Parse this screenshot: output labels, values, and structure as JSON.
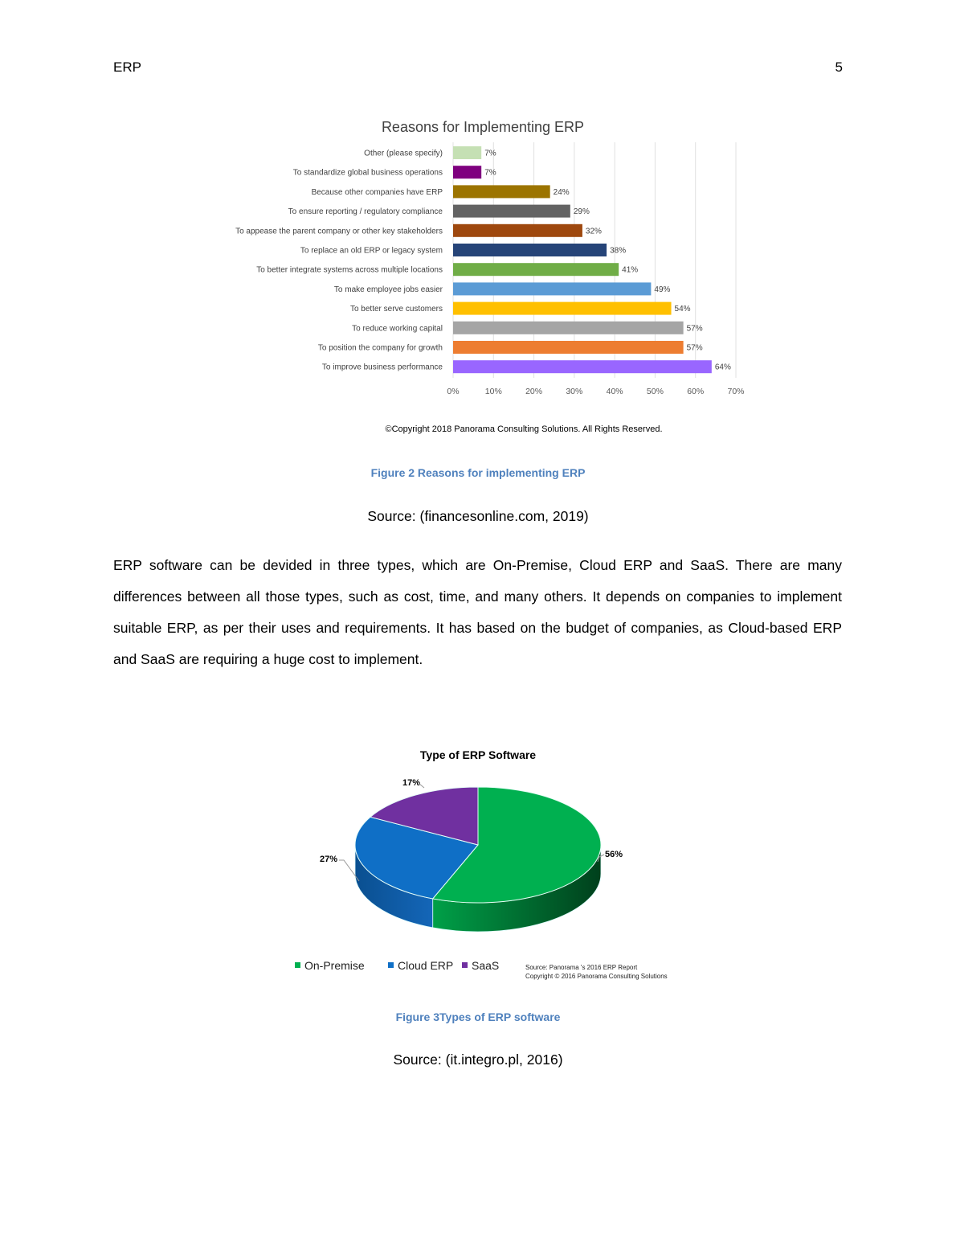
{
  "header": {
    "running_title": "ERP",
    "page_number": "5"
  },
  "figure2": {
    "caption": "Figure 2 Reasons for implementing ERP",
    "source": "Source: (financesonline.com, 2019)",
    "copyright": "©Copyright 2018 Panorama Consulting Solutions.  All Rights Reserved."
  },
  "paragraph": "ERP software can be devided in three types, which are On-Premise, Cloud ERP and SaaS. There are many differences between all those types, such as cost, time, and many others. It depends on companies to implement suitable ERP, as per their uses and requirements. It has based on the budget of companies, as Cloud-based ERP and SaaS are requiring a huge cost to implement.",
  "figure3": {
    "caption": "Figure 3Types of ERP software",
    "source": "Source: (it.integro.pl, 2016)",
    "chart_source_line1": "Source: Panorama 's 2016 ERP Report",
    "chart_source_line2": "Copyright © 2016 Panorama Consulting Solutions"
  },
  "chart_data": [
    {
      "type": "bar",
      "orientation": "horizontal",
      "title": "Reasons for Implementing ERP",
      "categories": [
        "Other (please specify)",
        "To standardize global business operations",
        "Because other companies have ERP",
        "To ensure reporting / regulatory compliance",
        "To appease the parent company or other key stakeholders",
        "To replace an old ERP or legacy system",
        "To better integrate systems across multiple locations",
        "To make employee jobs easier",
        "To better serve customers",
        "To reduce working capital",
        "To position the company for growth",
        "To improve business performance"
      ],
      "values": [
        7,
        7,
        24,
        29,
        32,
        38,
        41,
        49,
        54,
        57,
        57,
        64
      ],
      "data_labels": [
        "7%",
        "7%",
        "24%",
        "29%",
        "32%",
        "38%",
        "41%",
        "49%",
        "54%",
        "57%",
        "57%",
        "64%"
      ],
      "colors": [
        "#c5e0b4",
        "#7f007f",
        "#9c7400",
        "#636363",
        "#9e480e",
        "#264478",
        "#70ad47",
        "#5b9bd5",
        "#ffc000",
        "#a5a5a5",
        "#ed7d31",
        "#9966ff"
      ],
      "xlim": [
        0,
        70
      ],
      "x_ticks": [
        "0%",
        "10%",
        "20%",
        "30%",
        "40%",
        "50%",
        "60%",
        "70%"
      ],
      "grid": true
    },
    {
      "type": "pie",
      "style": "3d",
      "title": "Type of ERP Software",
      "categories": [
        "On-Premise",
        "Cloud ERP",
        "SaaS"
      ],
      "values": [
        56,
        27,
        17
      ],
      "data_labels": [
        "56%",
        "27%",
        "17%"
      ],
      "colors": [
        "#00b050",
        "#0f6fc6",
        "#7030a0"
      ],
      "legend": "bottom-left"
    }
  ]
}
